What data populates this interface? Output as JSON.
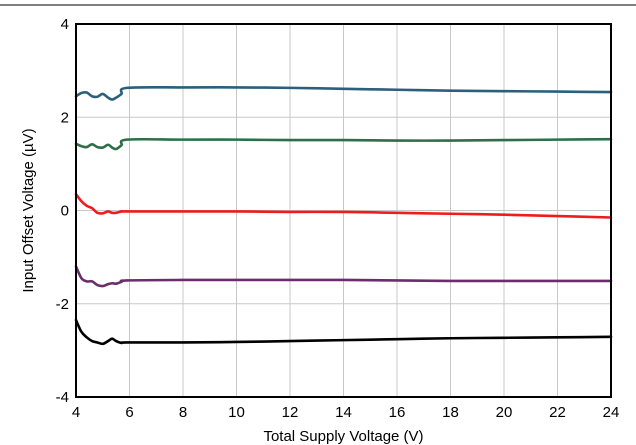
{
  "chart_data": {
    "type": "line",
    "title": "",
    "xlabel": "Total Supply Voltage (V)",
    "ylabel": "Input Offset Voltage (µV)",
    "xlim": [
      4,
      24
    ],
    "ylim": [
      -4,
      4
    ],
    "x_ticks": [
      "4",
      "6",
      "8",
      "10",
      "12",
      "14",
      "16",
      "18",
      "20",
      "22",
      "24"
    ],
    "y_ticks": [
      "-4",
      "-2",
      "0",
      "2",
      "4"
    ],
    "grid": true,
    "legend": "none",
    "series": [
      {
        "color": "#2c5f7c",
        "points": [
          [
            4.0,
            2.45
          ],
          [
            4.2,
            2.52
          ],
          [
            4.4,
            2.53
          ],
          [
            4.6,
            2.45
          ],
          [
            4.8,
            2.44
          ],
          [
            5.0,
            2.5
          ],
          [
            5.2,
            2.42
          ],
          [
            5.35,
            2.38
          ],
          [
            5.5,
            2.42
          ],
          [
            5.7,
            2.5
          ],
          [
            5.9,
            2.63
          ],
          [
            8.0,
            2.64
          ],
          [
            10.0,
            2.64
          ],
          [
            12.0,
            2.63
          ],
          [
            14.0,
            2.61
          ],
          [
            16.0,
            2.59
          ],
          [
            18.0,
            2.57
          ],
          [
            20.0,
            2.56
          ],
          [
            22.0,
            2.55
          ],
          [
            24.0,
            2.54
          ]
        ]
      },
      {
        "color": "#2e6e48",
        "points": [
          [
            4.0,
            1.43
          ],
          [
            4.2,
            1.38
          ],
          [
            4.4,
            1.36
          ],
          [
            4.6,
            1.42
          ],
          [
            4.8,
            1.36
          ],
          [
            5.0,
            1.35
          ],
          [
            5.2,
            1.41
          ],
          [
            5.35,
            1.35
          ],
          [
            5.5,
            1.32
          ],
          [
            5.7,
            1.4
          ],
          [
            5.9,
            1.52
          ],
          [
            8.0,
            1.52
          ],
          [
            10.0,
            1.52
          ],
          [
            12.0,
            1.51
          ],
          [
            14.0,
            1.51
          ],
          [
            16.0,
            1.5
          ],
          [
            18.0,
            1.5
          ],
          [
            20.0,
            1.51
          ],
          [
            22.0,
            1.52
          ],
          [
            24.0,
            1.53
          ]
        ]
      },
      {
        "color": "#ee1c1c",
        "points": [
          [
            4.0,
            0.35
          ],
          [
            4.2,
            0.2
          ],
          [
            4.4,
            0.1
          ],
          [
            4.6,
            0.05
          ],
          [
            4.8,
            -0.05
          ],
          [
            5.0,
            -0.06
          ],
          [
            5.2,
            -0.02
          ],
          [
            5.35,
            -0.05
          ],
          [
            5.5,
            -0.05
          ],
          [
            5.7,
            -0.02
          ],
          [
            5.9,
            -0.02
          ],
          [
            8.0,
            -0.02
          ],
          [
            10.0,
            -0.02
          ],
          [
            12.0,
            -0.03
          ],
          [
            14.0,
            -0.03
          ],
          [
            16.0,
            -0.05
          ],
          [
            18.0,
            -0.07
          ],
          [
            20.0,
            -0.09
          ],
          [
            22.0,
            -0.12
          ],
          [
            24.0,
            -0.15
          ]
        ]
      },
      {
        "color": "#6b2d6b",
        "points": [
          [
            4.0,
            -1.2
          ],
          [
            4.2,
            -1.45
          ],
          [
            4.4,
            -1.52
          ],
          [
            4.6,
            -1.52
          ],
          [
            4.8,
            -1.6
          ],
          [
            5.0,
            -1.62
          ],
          [
            5.2,
            -1.58
          ],
          [
            5.35,
            -1.56
          ],
          [
            5.5,
            -1.57
          ],
          [
            5.7,
            -1.53
          ],
          [
            5.9,
            -1.5
          ],
          [
            8.0,
            -1.49
          ],
          [
            10.0,
            -1.49
          ],
          [
            12.0,
            -1.49
          ],
          [
            14.0,
            -1.49
          ],
          [
            16.0,
            -1.5
          ],
          [
            18.0,
            -1.51
          ],
          [
            20.0,
            -1.51
          ],
          [
            22.0,
            -1.51
          ],
          [
            24.0,
            -1.51
          ]
        ]
      },
      {
        "color": "#000000",
        "points": [
          [
            4.0,
            -2.35
          ],
          [
            4.2,
            -2.6
          ],
          [
            4.4,
            -2.72
          ],
          [
            4.6,
            -2.8
          ],
          [
            4.8,
            -2.83
          ],
          [
            5.0,
            -2.86
          ],
          [
            5.2,
            -2.8
          ],
          [
            5.35,
            -2.75
          ],
          [
            5.5,
            -2.8
          ],
          [
            5.7,
            -2.84
          ],
          [
            5.9,
            -2.83
          ],
          [
            8.0,
            -2.83
          ],
          [
            10.0,
            -2.82
          ],
          [
            12.0,
            -2.8
          ],
          [
            14.0,
            -2.78
          ],
          [
            16.0,
            -2.76
          ],
          [
            18.0,
            -2.74
          ],
          [
            20.0,
            -2.73
          ],
          [
            22.0,
            -2.72
          ],
          [
            24.0,
            -2.71
          ]
        ]
      }
    ]
  }
}
